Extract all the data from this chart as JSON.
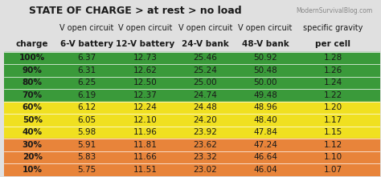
{
  "title": "STATE OF CHARGE > at rest > no load",
  "watermark": "ModernSurvivalBlog.com",
  "col_headers_line1": [
    "",
    "V open circuit",
    "V open circuit",
    "V open circuit",
    "V open circuit",
    "specific gravity"
  ],
  "col_headers_line2": [
    "charge",
    "6-V battery",
    "12-V battery",
    "24-V bank",
    "48-V bank",
    "per cell"
  ],
  "rows": [
    {
      "charge": "100%",
      "v6": "6.37",
      "v12": "12.73",
      "v24": "25.46",
      "v48": "50.92",
      "sg": "1.28",
      "color": "#3a9a3a"
    },
    {
      "charge": "90%",
      "v6": "6.31",
      "v12": "12.62",
      "v24": "25.24",
      "v48": "50.48",
      "sg": "1.26",
      "color": "#3a9a3a"
    },
    {
      "charge": "80%",
      "v6": "6.25",
      "v12": "12.50",
      "v24": "25.00",
      "v48": "50.00",
      "sg": "1.24",
      "color": "#3a9a3a"
    },
    {
      "charge": "70%",
      "v6": "6.19",
      "v12": "12.37",
      "v24": "24.74",
      "v48": "49.48",
      "sg": "1.22",
      "color": "#3a9a3a"
    },
    {
      "charge": "60%",
      "v6": "6.12",
      "v12": "12.24",
      "v24": "24.48",
      "v48": "48.96",
      "sg": "1.20",
      "color": "#f0e020"
    },
    {
      "charge": "50%",
      "v6": "6.05",
      "v12": "12.10",
      "v24": "24.20",
      "v48": "48.40",
      "sg": "1.17",
      "color": "#f0e020"
    },
    {
      "charge": "40%",
      "v6": "5.98",
      "v12": "11.96",
      "v24": "23.92",
      "v48": "47.84",
      "sg": "1.15",
      "color": "#f0e020"
    },
    {
      "charge": "30%",
      "v6": "5.91",
      "v12": "11.81",
      "v24": "23.62",
      "v48": "47.24",
      "sg": "1.12",
      "color": "#e8843a"
    },
    {
      "charge": "20%",
      "v6": "5.83",
      "v12": "11.66",
      "v24": "23.32",
      "v48": "46.64",
      "sg": "1.10",
      "color": "#e8843a"
    },
    {
      "charge": "10%",
      "v6": "5.75",
      "v12": "11.51",
      "v24": "23.02",
      "v48": "46.04",
      "sg": "1.07",
      "color": "#e8843a"
    }
  ],
  "bg_color": "#e0e0e0",
  "header_bg": "#d0d0d0",
  "text_color_dark": "#1a1a1a",
  "title_fontsize": 9,
  "header_fontsize": 7.5,
  "cell_fontsize": 7.5
}
